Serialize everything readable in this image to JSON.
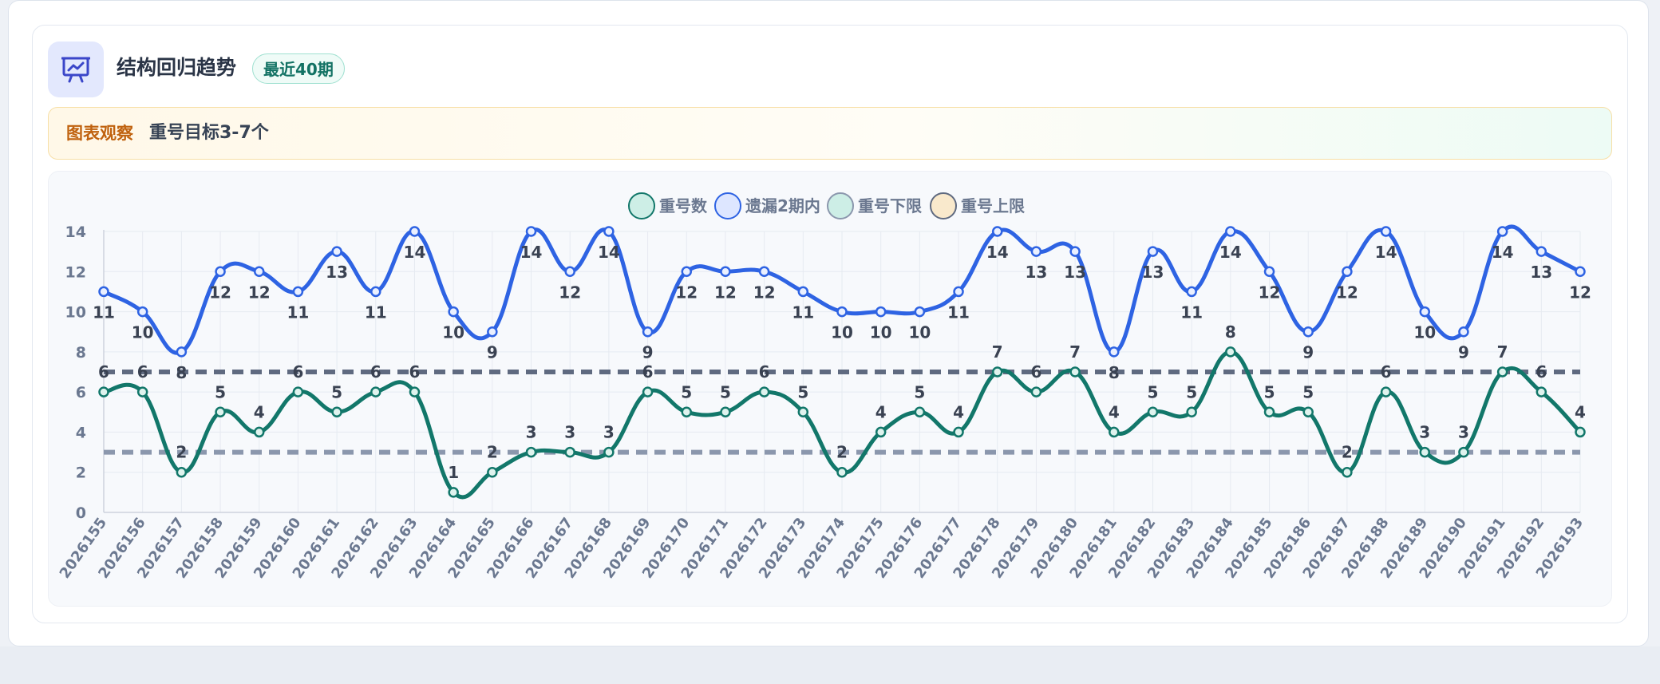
{
  "card": {
    "title": "结构回归趋势",
    "badge": "最近40期",
    "icon": "presentation-chart-icon"
  },
  "observation": {
    "label": "图表观察",
    "text": "重号目标3-7个"
  },
  "colors": {
    "repeat_count": "#12776a",
    "within_2": "#2e63e3",
    "lower_limit": "#8b97ad",
    "upper_limit": "#5f6a80",
    "axis_text": "#6b7890",
    "label_text": "#3a4252",
    "accent_orange": "#c0620f",
    "accent_teal": "#137264"
  },
  "chart_data": {
    "type": "line",
    "x": [
      "2026155",
      "2026156",
      "2026157",
      "2026158",
      "2026159",
      "2026160",
      "2026161",
      "2026162",
      "2026163",
      "2026164",
      "2026165",
      "2026166",
      "2026167",
      "2026168",
      "2026169",
      "2026170",
      "2026171",
      "2026172",
      "2026173",
      "2026174",
      "2026175",
      "2026176",
      "2026177",
      "2026178",
      "2026179",
      "2026180",
      "2026181",
      "2026182",
      "2026183",
      "2026184",
      "2026185",
      "2026186",
      "2026187",
      "2026188",
      "2026189",
      "2026190",
      "2026191",
      "2026192",
      "2026193"
    ],
    "series": [
      {
        "name": "重号数",
        "values": [
          6,
          6,
          2,
          5,
          4,
          6,
          5,
          6,
          6,
          1,
          2,
          3,
          3,
          3,
          6,
          5,
          5,
          6,
          5,
          2,
          4,
          5,
          4,
          7,
          6,
          7,
          4,
          5,
          5,
          8,
          5,
          5,
          2,
          6,
          3,
          3,
          7,
          6,
          4
        ]
      },
      {
        "name": "遗漏2期内",
        "values": [
          11,
          10,
          8,
          12,
          12,
          11,
          13,
          11,
          14,
          10,
          9,
          14,
          12,
          14,
          9,
          12,
          12,
          12,
          11,
          10,
          10,
          10,
          11,
          14,
          13,
          13,
          8,
          13,
          11,
          14,
          12,
          9,
          12,
          14,
          10,
          9,
          14,
          13,
          12
        ]
      },
      {
        "name": "重号下限",
        "values": [
          3,
          3,
          3,
          3,
          3,
          3,
          3,
          3,
          3,
          3,
          3,
          3,
          3,
          3,
          3,
          3,
          3,
          3,
          3,
          3,
          3,
          3,
          3,
          3,
          3,
          3,
          3,
          3,
          3,
          3,
          3,
          3,
          3,
          3,
          3,
          3,
          3,
          3,
          3
        ]
      },
      {
        "name": "重号上限",
        "values": [
          7,
          7,
          7,
          7,
          7,
          7,
          7,
          7,
          7,
          7,
          7,
          7,
          7,
          7,
          7,
          7,
          7,
          7,
          7,
          7,
          7,
          7,
          7,
          7,
          7,
          7,
          7,
          7,
          7,
          7,
          7,
          7,
          7,
          7,
          7,
          7,
          7,
          7,
          7
        ]
      }
    ],
    "y_ticks": [
      0,
      2,
      4,
      6,
      8,
      10,
      12,
      14
    ],
    "ylim": [
      0,
      14
    ],
    "grid": true,
    "legend_position": "top-center",
    "title": "",
    "xlabel": "",
    "ylabel": ""
  }
}
